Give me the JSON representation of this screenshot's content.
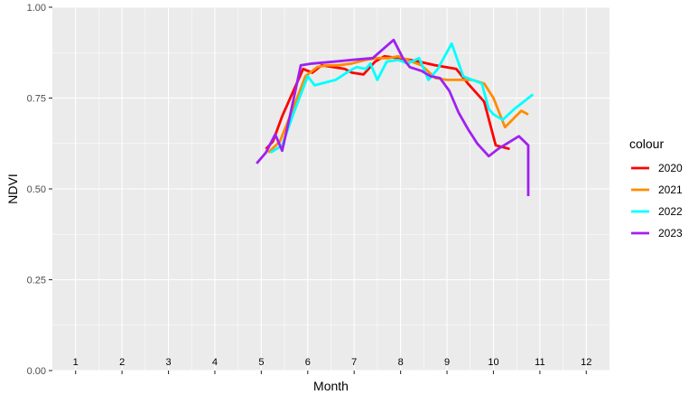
{
  "chart_data": {
    "type": "line",
    "xlabel": "Month",
    "ylabel": "NDVI",
    "xlim": [
      -0.5,
      11.5
    ],
    "ylim": [
      0.0,
      1.0
    ],
    "y_ticks": [
      "0.00",
      "0.25",
      "0.50",
      "0.75",
      "1.00"
    ],
    "y_tick_values": [
      0.0,
      0.25,
      0.5,
      0.75,
      1.0
    ],
    "month_labels": [
      "1",
      "2",
      "3",
      "4",
      "5",
      "6",
      "7",
      "8",
      "9",
      "10",
      "11",
      "12"
    ],
    "month_label_y": 0.015,
    "grid": true,
    "panel_background": "#ebebeb",
    "grid_color": "#ffffff",
    "legend": {
      "title": "colour",
      "position": "right"
    },
    "series": [
      {
        "name": "2020",
        "color": "#ff0000",
        "x": [
          4.1,
          4.25,
          4.45,
          4.9,
          5.1,
          5.3,
          5.55,
          5.8,
          5.95,
          6.2,
          6.45,
          6.65,
          6.95,
          7.2,
          7.4,
          7.75,
          8.2,
          8.45,
          8.8,
          9.05,
          9.35
        ],
        "y": [
          0.61,
          0.63,
          0.7,
          0.83,
          0.82,
          0.84,
          0.835,
          0.83,
          0.82,
          0.815,
          0.85,
          0.865,
          0.86,
          0.855,
          0.85,
          0.84,
          0.83,
          0.79,
          0.74,
          0.62,
          0.61
        ]
      },
      {
        "name": "2021",
        "color": "#ff8c00",
        "x": [
          4.15,
          4.4,
          4.65,
          4.95,
          5.2,
          5.4,
          5.65,
          5.95,
          6.25,
          6.5,
          6.75,
          6.95,
          7.15,
          7.45,
          7.75,
          8.0,
          8.3,
          8.55,
          8.8,
          9.0,
          9.25,
          9.6,
          9.75
        ],
        "y": [
          0.6,
          0.63,
          0.71,
          0.81,
          0.835,
          0.84,
          0.84,
          0.845,
          0.855,
          0.86,
          0.86,
          0.865,
          0.855,
          0.84,
          0.805,
          0.8,
          0.8,
          0.8,
          0.79,
          0.75,
          0.67,
          0.715,
          0.705
        ]
      },
      {
        "name": "2022",
        "color": "#00ffff",
        "x": [
          4.2,
          4.45,
          4.7,
          5.0,
          5.15,
          5.3,
          5.6,
          5.9,
          6.05,
          6.25,
          6.35,
          6.5,
          6.7,
          6.95,
          7.15,
          7.4,
          7.6,
          7.8,
          8.1,
          8.35,
          8.55,
          8.75,
          8.9,
          9.0,
          9.2,
          9.45,
          9.85
        ],
        "y": [
          0.6,
          0.62,
          0.71,
          0.81,
          0.785,
          0.79,
          0.8,
          0.825,
          0.835,
          0.83,
          0.845,
          0.8,
          0.85,
          0.855,
          0.845,
          0.86,
          0.8,
          0.83,
          0.9,
          0.81,
          0.8,
          0.79,
          0.72,
          0.705,
          0.69,
          0.72,
          0.76
        ]
      },
      {
        "name": "2023",
        "color": "#a020f0",
        "x": [
          3.9,
          4.1,
          4.3,
          4.45,
          4.65,
          4.85,
          5.1,
          5.55,
          5.95,
          6.4,
          6.85,
          7.05,
          7.2,
          7.45,
          7.65,
          7.85,
          8.05,
          8.25,
          8.45,
          8.65,
          8.9,
          9.1,
          9.55,
          9.75,
          9.75
        ],
        "y": [
          0.57,
          0.6,
          0.65,
          0.605,
          0.72,
          0.84,
          0.845,
          0.85,
          0.855,
          0.86,
          0.91,
          0.86,
          0.835,
          0.825,
          0.81,
          0.805,
          0.77,
          0.71,
          0.665,
          0.625,
          0.59,
          0.61,
          0.645,
          0.62,
          0.48
        ]
      }
    ]
  }
}
